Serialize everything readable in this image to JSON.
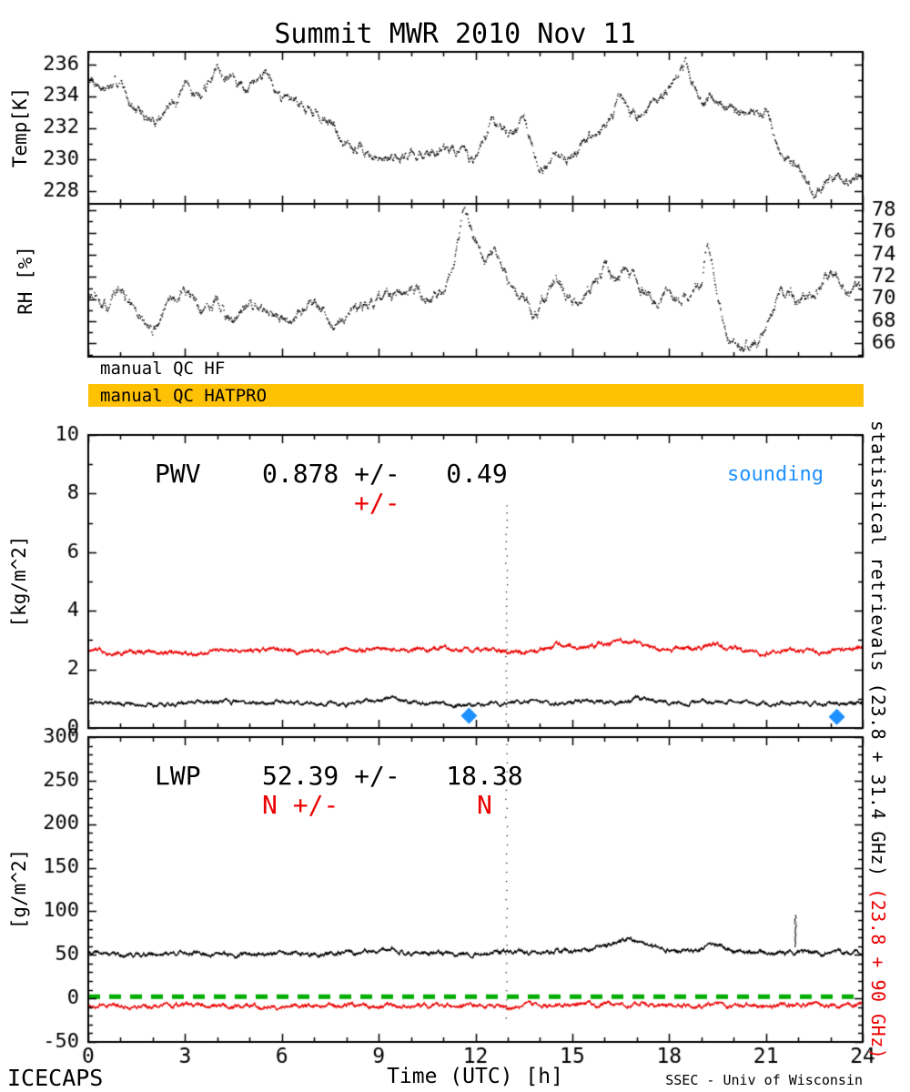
{
  "title": "Summit MWR 2010 Nov 11",
  "colors": {
    "black": "#000000",
    "red": "#EB0000",
    "blue": "#1E90FF",
    "green": "#00AC00",
    "orange": "#FFC104"
  },
  "qc": {
    "hf_label": "manual QC HF",
    "hatpro_label": "manual QC HATPRO",
    "hatpro_bar_color": "#FFC104"
  },
  "footer": {
    "left": "ICECAPS",
    "right": "SSEC - Univ of Wisconsin"
  },
  "right_axis_label": {
    "black": "statistical retrievals (23.8 + 31.4 GHz)",
    "red": " (23.8 + 90 GHz)"
  },
  "xaxis": {
    "label": "Time (UTC) [h]",
    "lim": [
      0,
      24
    ],
    "ticks": [
      0,
      3,
      6,
      9,
      12,
      15,
      18,
      21,
      24
    ],
    "minor_step": 1
  },
  "chart_data": [
    {
      "id": "temp",
      "type": "line",
      "ylabel": "Temp[K]",
      "ylim": [
        227.2,
        236.8
      ],
      "yticks": [
        228,
        230,
        232,
        234,
        236
      ],
      "yminor_step": 1,
      "ytick_side": "left",
      "series": [
        {
          "name": "brightness-temperature",
          "color": "#000000",
          "style": "dots",
          "noise": 0.35,
          "seed": 7,
          "points": [
            [
              0,
              235.3
            ],
            [
              0.5,
              234.5
            ],
            [
              1,
              234.8
            ],
            [
              1.5,
              233.1
            ],
            [
              2,
              232.3
            ],
            [
              2.5,
              233.3
            ],
            [
              3,
              234.5
            ],
            [
              3.5,
              234
            ],
            [
              4,
              235.9
            ],
            [
              4.5,
              235.1
            ],
            [
              5,
              234.3
            ],
            [
              5.5,
              235.7
            ],
            [
              6,
              234.1
            ],
            [
              6.5,
              233.7
            ],
            [
              7,
              233.1
            ],
            [
              7.5,
              232.2
            ],
            [
              8,
              231
            ],
            [
              8.5,
              230.4
            ],
            [
              9,
              229.9
            ],
            [
              9.5,
              230.3
            ],
            [
              10,
              230.4
            ],
            [
              10.5,
              230.2
            ],
            [
              11,
              231
            ],
            [
              11.5,
              230.5
            ],
            [
              12,
              230
            ],
            [
              12.5,
              232.3
            ],
            [
              13,
              231.7
            ],
            [
              13.5,
              232.5
            ],
            [
              14,
              229.1
            ],
            [
              14.5,
              230.5
            ],
            [
              15,
              230.1
            ],
            [
              15.5,
              231.4
            ],
            [
              16,
              232
            ],
            [
              16.5,
              233.8
            ],
            [
              17,
              232.9
            ],
            [
              17.5,
              233.5
            ],
            [
              18,
              234.4
            ],
            [
              18.5,
              235.9
            ],
            [
              19,
              233.5
            ],
            [
              19.5,
              233.8
            ],
            [
              20,
              233.1
            ],
            [
              20.5,
              232.7
            ],
            [
              21,
              233.1
            ],
            [
              21.5,
              230.2
            ],
            [
              22,
              229.6
            ],
            [
              22.5,
              227.7
            ],
            [
              23,
              228.6
            ],
            [
              23.5,
              228.7
            ],
            [
              24,
              229
            ]
          ]
        }
      ]
    },
    {
      "id": "rh",
      "type": "line",
      "ylabel": "RH [%]",
      "ylim": [
        64.8,
        78.6
      ],
      "yticks": [
        66,
        68,
        70,
        72,
        74,
        76,
        78
      ],
      "yminor_step": 1,
      "ytick_side": "right",
      "series": [
        {
          "name": "relative-humidity",
          "color": "#000000",
          "style": "dots",
          "noise": 0.55,
          "seed": 13,
          "points": [
            [
              0,
              70.5
            ],
            [
              0.5,
              69
            ],
            [
              1,
              71
            ],
            [
              1.5,
              68.5
            ],
            [
              2,
              67
            ],
            [
              2.5,
              69.5
            ],
            [
              3,
              71
            ],
            [
              3.5,
              69
            ],
            [
              4,
              70
            ],
            [
              4.5,
              67.3
            ],
            [
              5,
              69.8
            ],
            [
              5.5,
              68.5
            ],
            [
              6,
              67.8
            ],
            [
              6.5,
              69
            ],
            [
              7,
              69.5
            ],
            [
              7.5,
              68.2
            ],
            [
              8,
              68.8
            ],
            [
              8.5,
              69.4
            ],
            [
              9,
              70.2
            ],
            [
              9.5,
              69.8
            ],
            [
              10,
              70.6
            ],
            [
              10.5,
              70.2
            ],
            [
              11,
              71
            ],
            [
              11.3,
              72.5
            ],
            [
              11.6,
              77.8
            ],
            [
              11.8,
              76.5
            ],
            [
              12,
              75
            ],
            [
              12.3,
              73.5
            ],
            [
              12.6,
              74
            ],
            [
              13,
              71.5
            ],
            [
              13.5,
              70
            ],
            [
              13.8,
              68.4
            ],
            [
              14.2,
              70.5
            ],
            [
              14.5,
              72
            ],
            [
              15,
              69.6
            ],
            [
              15.5,
              70.5
            ],
            [
              16,
              73.2
            ],
            [
              16.3,
              71.5
            ],
            [
              16.7,
              72.5
            ],
            [
              17,
              71
            ],
            [
              17.5,
              69.8
            ],
            [
              18,
              70.5
            ],
            [
              18.5,
              70
            ],
            [
              19,
              71.5
            ],
            [
              19.2,
              75.3
            ],
            [
              19.4,
              72
            ],
            [
              19.7,
              67
            ],
            [
              20,
              66
            ],
            [
              20.3,
              65.4
            ],
            [
              20.7,
              66.5
            ],
            [
              21,
              67.2
            ],
            [
              21.5,
              71.3
            ],
            [
              22,
              69.8
            ],
            [
              22.5,
              70.5
            ],
            [
              23,
              72.3
            ],
            [
              23.5,
              71
            ],
            [
              24,
              70.8
            ]
          ]
        }
      ]
    },
    {
      "id": "pwv",
      "type": "line",
      "ylabel": "[kg/m^2]",
      "ylim": [
        0,
        10
      ],
      "yticks": [
        0,
        2,
        4,
        6,
        8,
        10
      ],
      "yminor_step": 1,
      "ytick_side": "left",
      "labels": {
        "main": "PWV    0.878 +/-   0.49",
        "err": "+/-",
        "sounding": "sounding"
      },
      "stats": {
        "pwv_mean": 0.878,
        "pwv_sigma": 0.49
      },
      "markers": {
        "name": "sounding",
        "shape": "diamond",
        "color": "#1E90FF",
        "size": 9,
        "points": [
          [
            11.8,
            0.42
          ],
          [
            23.2,
            0.38
          ]
        ]
      },
      "spikes": [
        {
          "x": 12.95,
          "ymin": 0.25,
          "ymax": 7.6
        }
      ],
      "series": [
        {
          "name": "pwv-23.8+90GHz",
          "color": "#EB0000",
          "style": "line",
          "noise": 0.08,
          "seed": 33,
          "points": [
            [
              0,
              2.65
            ],
            [
              1,
              2.6
            ],
            [
              2,
              2.6
            ],
            [
              3,
              2.55
            ],
            [
              4,
              2.65
            ],
            [
              5,
              2.6
            ],
            [
              6,
              2.65
            ],
            [
              7,
              2.6
            ],
            [
              8,
              2.65
            ],
            [
              9,
              2.7
            ],
            [
              10,
              2.65
            ],
            [
              11,
              2.7
            ],
            [
              12,
              2.65
            ],
            [
              13,
              2.6
            ],
            [
              14,
              2.7
            ],
            [
              14.5,
              2.85
            ],
            [
              15,
              2.8
            ],
            [
              15.5,
              2.75
            ],
            [
              16,
              2.9
            ],
            [
              16.5,
              3
            ],
            [
              17,
              2.95
            ],
            [
              17.5,
              2.7
            ],
            [
              18,
              2.65
            ],
            [
              18.5,
              2.7
            ],
            [
              19,
              2.75
            ],
            [
              19.5,
              2.85
            ],
            [
              20,
              2.7
            ],
            [
              20.5,
              2.65
            ],
            [
              21,
              2.6
            ],
            [
              21.5,
              2.65
            ],
            [
              22,
              2.6
            ],
            [
              22.5,
              2.65
            ],
            [
              23,
              2.6
            ],
            [
              23.5,
              2.65
            ],
            [
              24,
              2.7
            ]
          ]
        },
        {
          "name": "pwv-23.8+31.4GHz",
          "color": "#000000",
          "style": "line",
          "noise": 0.07,
          "seed": 21,
          "points": [
            [
              0,
              0.9
            ],
            [
              1,
              0.85
            ],
            [
              2,
              0.8
            ],
            [
              3,
              0.85
            ],
            [
              4,
              0.9
            ],
            [
              5,
              0.85
            ],
            [
              6,
              0.9
            ],
            [
              7,
              0.85
            ],
            [
              8,
              0.8
            ],
            [
              9,
              0.95
            ],
            [
              9.5,
              1
            ],
            [
              10,
              0.9
            ],
            [
              10.5,
              0.8
            ],
            [
              11,
              0.85
            ],
            [
              11.5,
              0.75
            ],
            [
              12,
              0.8
            ],
            [
              12.5,
              0.85
            ],
            [
              13,
              0.9
            ],
            [
              13.5,
              0.85
            ],
            [
              14,
              0.9
            ],
            [
              14.5,
              0.8
            ],
            [
              15,
              0.9
            ],
            [
              15.5,
              0.95
            ],
            [
              16,
              0.85
            ],
            [
              16.5,
              0.9
            ],
            [
              17,
              1
            ],
            [
              17.5,
              0.9
            ],
            [
              18,
              0.85
            ],
            [
              18.5,
              0.8
            ],
            [
              19,
              0.9
            ],
            [
              19.5,
              0.85
            ],
            [
              20,
              0.9
            ],
            [
              20.5,
              0.85
            ],
            [
              21,
              0.8
            ],
            [
              21.5,
              0.85
            ],
            [
              22,
              0.9
            ],
            [
              22.5,
              0.85
            ],
            [
              23,
              0.8
            ],
            [
              23.5,
              0.85
            ],
            [
              24,
              0.9
            ]
          ]
        }
      ]
    },
    {
      "id": "lwp",
      "type": "line",
      "ylabel": "[g/m^2]",
      "ylim": [
        -50,
        300
      ],
      "yticks": [
        -50,
        0,
        50,
        100,
        150,
        200,
        250,
        300
      ],
      "yminor_step": 10,
      "ytick_side": "left",
      "labels": {
        "main": "LWP    52.39 +/-   18.38",
        "err": "N +/-         N"
      },
      "stats": {
        "lwp_mean": 52.39,
        "lwp_sigma": 18.38
      },
      "hline": {
        "y": 2,
        "color": "#00AC00",
        "dash": [
          13,
          10
        ],
        "width": 5
      },
      "spikes": [
        {
          "x": 12.95,
          "ymin": -22,
          "ymax": 292
        },
        {
          "x": 21.9,
          "ymin": 60,
          "ymax": 96
        }
      ],
      "series": [
        {
          "name": "lwp-23.8+90GHz",
          "color": "#EB0000",
          "style": "line",
          "noise": 2.6,
          "seed": 55,
          "points": [
            [
              0,
              -8
            ],
            [
              2,
              -9
            ],
            [
              4,
              -8
            ],
            [
              6,
              -9
            ],
            [
              8,
              -8
            ],
            [
              10,
              -9
            ],
            [
              12,
              -8
            ],
            [
              13,
              -10
            ],
            [
              14,
              -9
            ],
            [
              16,
              -7
            ],
            [
              17,
              -6
            ],
            [
              18,
              -8
            ],
            [
              20,
              -9
            ],
            [
              22,
              -8
            ],
            [
              24,
              -8
            ]
          ]
        },
        {
          "name": "lwp-23.8+31.4GHz",
          "color": "#000000",
          "style": "line",
          "noise": 2.6,
          "seed": 41,
          "points": [
            [
              0,
              52
            ],
            [
              1,
              50
            ],
            [
              2,
              51
            ],
            [
              3,
              53
            ],
            [
              4,
              50
            ],
            [
              5,
              51
            ],
            [
              6,
              52
            ],
            [
              7,
              50
            ],
            [
              8,
              52
            ],
            [
              9,
              53
            ],
            [
              9.5,
              56
            ],
            [
              10,
              52
            ],
            [
              11,
              51
            ],
            [
              12,
              52
            ],
            [
              13,
              53
            ],
            [
              14,
              52
            ],
            [
              15,
              55
            ],
            [
              15.5,
              57
            ],
            [
              16,
              60
            ],
            [
              16.5,
              66
            ],
            [
              16.8,
              70
            ],
            [
              17.2,
              64
            ],
            [
              17.5,
              58
            ],
            [
              18,
              55
            ],
            [
              18.5,
              54
            ],
            [
              19,
              57
            ],
            [
              19.5,
              60
            ],
            [
              20,
              55
            ],
            [
              20.5,
              53
            ],
            [
              21,
              52
            ],
            [
              22,
              53
            ],
            [
              23,
              52
            ],
            [
              24,
              53
            ]
          ]
        }
      ]
    }
  ]
}
